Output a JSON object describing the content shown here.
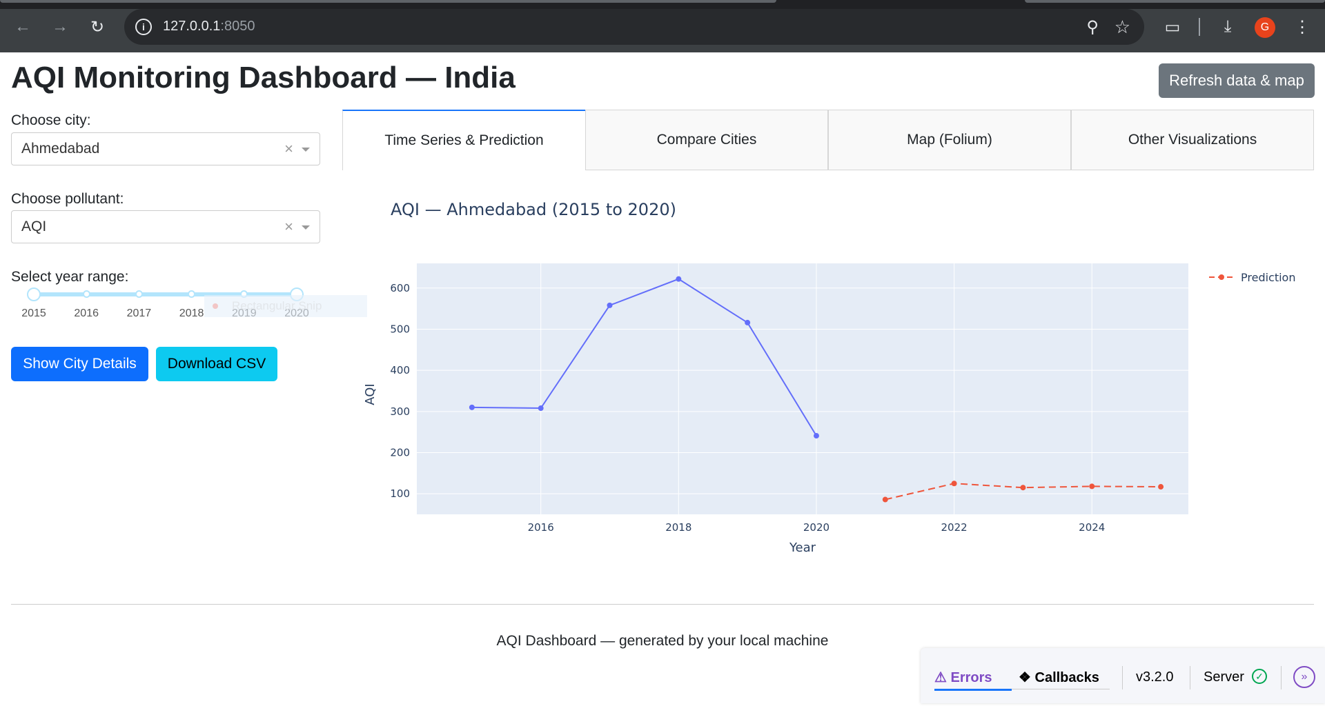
{
  "browser": {
    "url_host": "127.0.0.1",
    "url_port": ":8050",
    "profile_initial": "G"
  },
  "header": {
    "title": "AQI Monitoring Dashboard — India",
    "refresh_label": "Refresh data & map"
  },
  "controls": {
    "city_label": "Choose city:",
    "city_value": "Ahmedabad",
    "pollutant_label": "Choose pollutant:",
    "pollutant_value": "AQI",
    "year_label": "Select year range:",
    "year_marks": [
      "2015",
      "2016",
      "2017",
      "2018",
      "2019",
      "2020"
    ],
    "year_range": [
      2015,
      2020
    ],
    "ghost_tooltip": "Rectangular Snip",
    "show_details_label": "Show City Details",
    "download_label": "Download CSV"
  },
  "tabs": [
    {
      "label": "Time Series & Prediction",
      "active": true
    },
    {
      "label": "Compare Cities",
      "active": false
    },
    {
      "label": "Map (Folium)",
      "active": false
    },
    {
      "label": "Other Visualizations",
      "active": false
    }
  ],
  "chart_data": {
    "type": "line",
    "title": "AQI — Ahmedabad (2015 to 2020)",
    "xlabel": "Year",
    "ylabel": "AQI",
    "xlim": [
      2014.2,
      2025.4
    ],
    "ylim": [
      50,
      660
    ],
    "x_ticks": [
      2016,
      2018,
      2020,
      2022,
      2024
    ],
    "y_ticks": [
      100,
      200,
      300,
      400,
      500,
      600
    ],
    "legend_position": "top-right",
    "series": [
      {
        "x": [
          2015,
          2016,
          2017,
          2018,
          2019,
          2020
        ],
        "y": [
          310,
          308,
          558,
          622,
          516,
          241
        ],
        "color": "#636efa",
        "dash": false
      },
      {
        "name": "Prediction",
        "x": [
          2021,
          2022,
          2023,
          2024,
          2025
        ],
        "y": [
          86,
          125,
          115,
          118,
          117
        ],
        "color": "#ef553b",
        "dash": true
      }
    ]
  },
  "footer": {
    "text": "AQI Dashboard — generated by your local machine"
  },
  "devtools": {
    "errors_label": "Errors",
    "callbacks_label": "Callbacks",
    "version": "v3.2.0",
    "server_label": "Server"
  },
  "colors": {
    "primary": "#0d6efd",
    "info": "#0dcaf0",
    "secondary": "#6c757d",
    "plot_bg": "#e5ecf6"
  }
}
